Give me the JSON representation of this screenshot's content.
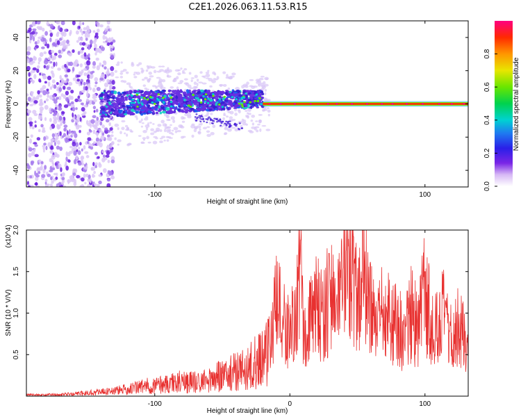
{
  "figure_title": "C2E1.2026.063.11.53.R15",
  "colors": {
    "snr_line": "#e8302f",
    "frame": "#000000"
  },
  "chart_data": [
    {
      "type": "heatmap",
      "title": "C2E1.2026.063.11.53.R15",
      "xlabel": "Height of straight line (km)",
      "ylabel": "Frequency (Hz)",
      "xlim": [
        -195,
        132
      ],
      "ylim": [
        -50,
        50
      ],
      "xticks": [
        -100,
        0,
        100
      ],
      "xtick_labels": [
        "-100",
        "",
        "100"
      ],
      "yticks": [
        -40,
        -20,
        0,
        20,
        40
      ],
      "ytick_labels": [
        "-40",
        "-20",
        "0",
        "20",
        "40"
      ],
      "colorbar": {
        "label": "Normalized spectral amplitude",
        "range": [
          0,
          1
        ],
        "ticks": [
          0.0,
          0.2,
          0.4,
          0.6,
          0.8
        ],
        "tick_labels": [
          "0.0",
          "0.2",
          "0.4",
          "0.6",
          "0.8"
        ]
      },
      "features": [
        {
          "description": "broadband scatter",
          "x_range": [
            -195,
            -130
          ],
          "freq_range": [
            -50,
            50
          ],
          "amplitude": 0.15
        },
        {
          "description": "central band",
          "x_range": [
            -140,
            -20
          ],
          "freq_center": 0,
          "freq_halfwidth": [
            8,
            5
          ],
          "amplitude": 0.35
        },
        {
          "description": "narrow tone",
          "x_range": [
            -20,
            132
          ],
          "freq_center": 0,
          "amplitude": 0.95
        }
      ]
    },
    {
      "type": "line",
      "xlabel": "Height of straight line (km)",
      "ylabel": "SNR (10 * V/V)",
      "scale_label": "(x10^4)",
      "xlim": [
        -195,
        132
      ],
      "ylim": [
        0,
        2.0
      ],
      "xticks": [
        -100,
        0,
        100
      ],
      "xtick_labels": [
        "-100",
        "0",
        "100"
      ],
      "yticks": [
        0.5,
        1.0,
        1.5,
        2.0
      ],
      "ytick_labels": [
        "0.5",
        "1.0",
        "1.5",
        "2.0"
      ],
      "series": [
        {
          "name": "SNR",
          "x": [
            -195,
            -180,
            -160,
            -150,
            -140,
            -130,
            -120,
            -110,
            -100,
            -90,
            -80,
            -70,
            -60,
            -50,
            -40,
            -30,
            -20,
            -15,
            -10,
            -5,
            0,
            5,
            8,
            10,
            15,
            20,
            25,
            30,
            35,
            40,
            45,
            50,
            55,
            60,
            65,
            70,
            75,
            80,
            85,
            90,
            95,
            100,
            105,
            110,
            115,
            120,
            125,
            132
          ],
          "values": [
            0.02,
            0.02,
            0.03,
            0.05,
            0.06,
            0.08,
            0.1,
            0.14,
            0.16,
            0.18,
            0.22,
            0.2,
            0.24,
            0.3,
            0.36,
            0.42,
            0.6,
            0.7,
            1.2,
            1.0,
            0.85,
            1.1,
            1.85,
            0.85,
            1.0,
            1.2,
            1.1,
            1.4,
            1.15,
            1.4,
            2.0,
            1.2,
            1.6,
            1.1,
            0.9,
            1.2,
            1.0,
            0.95,
            0.8,
            1.1,
            0.85,
            1.45,
            0.9,
            0.95,
            1.1,
            0.7,
            1.0,
            0.6
          ],
          "peaks": [
            [
              8,
              1.88
            ],
            [
              29,
              1.72
            ],
            [
              40,
              2.0
            ],
            [
              47,
              1.92
            ],
            [
              54,
              2.0
            ],
            [
              100,
              1.5
            ]
          ]
        }
      ]
    }
  ]
}
